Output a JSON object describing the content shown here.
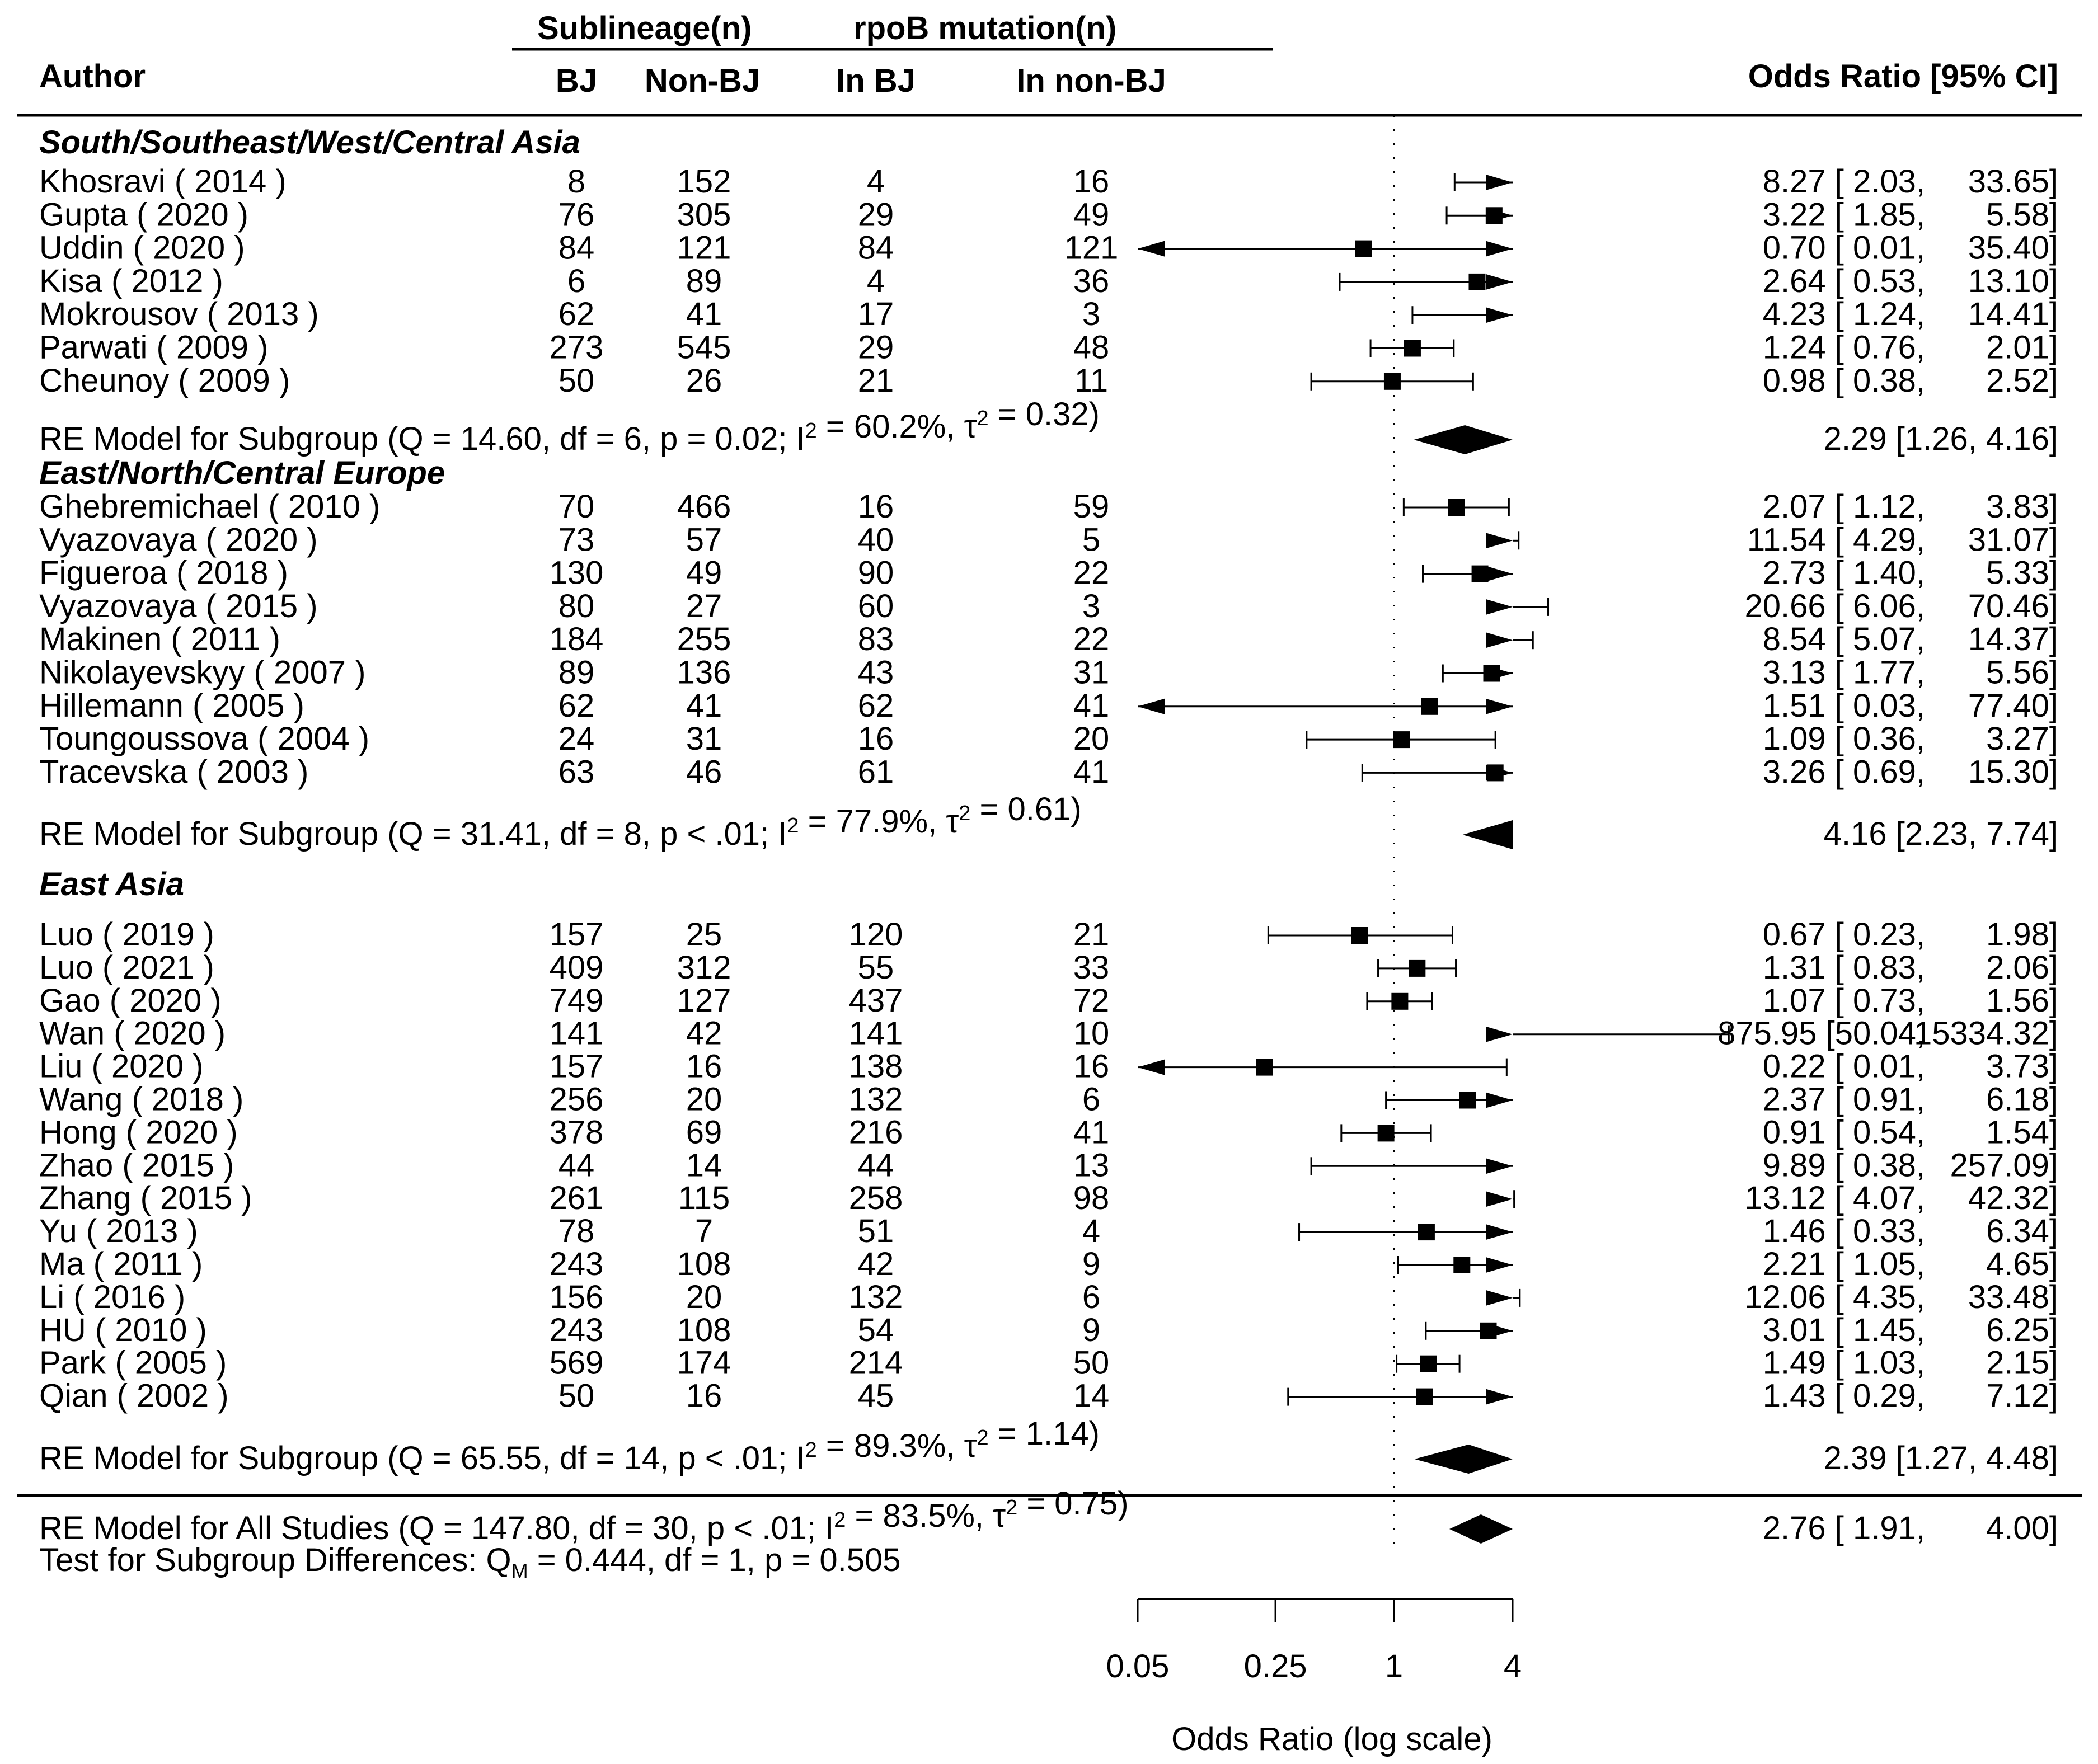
{
  "chart_data": {
    "type": "forest",
    "headers": {
      "author": "Author",
      "group1": "Sublineage(n)",
      "group2": "rpoB mutation(n)",
      "col_bj": "BJ",
      "col_nonbj": "Non-BJ",
      "col_in_bj": "In BJ",
      "col_in_nonbj": "In non-BJ",
      "estimate": "Odds Ratio [95% CI]"
    },
    "axis": {
      "xlabel": "Odds Ratio (log scale)",
      "scale": "log",
      "xlim": [
        0.05,
        4
      ],
      "ticks": [
        0.05,
        0.25,
        1,
        4
      ],
      "tick_labels": [
        "0.05",
        "0.25",
        "1",
        "4"
      ],
      "reference_line": 1
    },
    "groups": [
      {
        "name": "South/Southeast/West/Central Asia",
        "studies": [
          {
            "author": "Khosravi ( 2014 )",
            "bj": "8",
            "nonbj": "152",
            "in_bj": "4",
            "in_nonbj": "16",
            "est_label": "8.27 [ 2.03,",
            "hi_label": "33.65]",
            "or": 8.27,
            "lo": 2.03,
            "hi": 33.65
          },
          {
            "author": "Gupta ( 2020 )",
            "bj": "76",
            "nonbj": "305",
            "in_bj": "29",
            "in_nonbj": "49",
            "est_label": "3.22 [ 1.85,",
            "hi_label": "5.58]",
            "or": 3.22,
            "lo": 1.85,
            "hi": 5.58
          },
          {
            "author": "Uddin ( 2020 )",
            "bj": "84",
            "nonbj": "121",
            "in_bj": "84",
            "in_nonbj": "121",
            "est_label": "0.70 [ 0.01,",
            "hi_label": "35.40]",
            "or": 0.7,
            "lo": 0.01,
            "hi": 35.4
          },
          {
            "author": "Kisa ( 2012 )",
            "bj": "6",
            "nonbj": "89",
            "in_bj": "4",
            "in_nonbj": "36",
            "est_label": "2.64 [ 0.53,",
            "hi_label": "13.10]",
            "or": 2.64,
            "lo": 0.53,
            "hi": 13.1
          },
          {
            "author": "Mokrousov ( 2013 )",
            "bj": "62",
            "nonbj": "41",
            "in_bj": "17",
            "in_nonbj": "3",
            "est_label": "4.23 [ 1.24,",
            "hi_label": "14.41]",
            "or": 4.23,
            "lo": 1.24,
            "hi": 14.41
          },
          {
            "author": "Parwati ( 2009 )",
            "bj": "273",
            "nonbj": "545",
            "in_bj": "29",
            "in_nonbj": "48",
            "est_label": "1.24 [ 0.76,",
            "hi_label": "2.01]",
            "or": 1.24,
            "lo": 0.76,
            "hi": 2.01
          },
          {
            "author": "Cheunoy ( 2009 )",
            "bj": "50",
            "nonbj": "26",
            "in_bj": "21",
            "in_nonbj": "11",
            "est_label": "0.98 [ 0.38,",
            "hi_label": "2.52]",
            "or": 0.98,
            "lo": 0.38,
            "hi": 2.52
          }
        ],
        "model": {
          "label_pre": "RE Model for Subgroup (Q = 14.60, df = 6, p = 0.02; I",
          "label_mid": " = 60.2%, τ",
          "label_post": " = 0.32)",
          "sup": "2",
          "est_label": "2.29 [1.26, 4.16]",
          "or": 2.29,
          "lo": 1.26,
          "hi": 4.16
        }
      },
      {
        "name": "East/North/Central Europe",
        "studies": [
          {
            "author": "Ghebremichael ( 2010 )",
            "bj": "70",
            "nonbj": "466",
            "in_bj": "16",
            "in_nonbj": "59",
            "est_label": "2.07 [ 1.12,",
            "hi_label": "3.83]",
            "or": 2.07,
            "lo": 1.12,
            "hi": 3.83
          },
          {
            "author": "Vyazovaya ( 2020 )",
            "bj": "73",
            "nonbj": "57",
            "in_bj": "40",
            "in_nonbj": "5",
            "est_label": "11.54 [ 4.29,",
            "hi_label": "31.07]",
            "or": 11.54,
            "lo": 4.29,
            "hi": 31.07
          },
          {
            "author": "Figueroa ( 2018 )",
            "bj": "130",
            "nonbj": "49",
            "in_bj": "90",
            "in_nonbj": "22",
            "est_label": "2.73 [ 1.40,",
            "hi_label": "5.33]",
            "or": 2.73,
            "lo": 1.4,
            "hi": 5.33
          },
          {
            "author": "Vyazovaya ( 2015 )",
            "bj": "80",
            "nonbj": "27",
            "in_bj": "60",
            "in_nonbj": "3",
            "est_label": "20.66 [ 6.06,",
            "hi_label": "70.46]",
            "or": 20.66,
            "lo": 6.06,
            "hi": 70.46
          },
          {
            "author": "Makinen ( 2011 )",
            "bj": "184",
            "nonbj": "255",
            "in_bj": "83",
            "in_nonbj": "22",
            "est_label": "8.54 [ 5.07,",
            "hi_label": "14.37]",
            "or": 8.54,
            "lo": 5.07,
            "hi": 14.37
          },
          {
            "author": "Nikolayevskyy ( 2007 )",
            "bj": "89",
            "nonbj": "136",
            "in_bj": "43",
            "in_nonbj": "31",
            "est_label": "3.13 [ 1.77,",
            "hi_label": "5.56]",
            "or": 3.13,
            "lo": 1.77,
            "hi": 5.56
          },
          {
            "author": "Hillemann ( 2005 )",
            "bj": "62",
            "nonbj": "41",
            "in_bj": "62",
            "in_nonbj": "41",
            "est_label": "1.51 [ 0.03,",
            "hi_label": "77.40]",
            "or": 1.51,
            "lo": 0.03,
            "hi": 77.4
          },
          {
            "author": "Toungoussova ( 2004 )",
            "bj": "24",
            "nonbj": "31",
            "in_bj": "16",
            "in_nonbj": "20",
            "est_label": "1.09 [ 0.36,",
            "hi_label": "3.27]",
            "or": 1.09,
            "lo": 0.36,
            "hi": 3.27
          },
          {
            "author": "Tracevska ( 2003 )",
            "bj": "63",
            "nonbj": "46",
            "in_bj": "61",
            "in_nonbj": "41",
            "est_label": "3.26 [ 0.69,",
            "hi_label": "15.30]",
            "or": 3.26,
            "lo": 0.69,
            "hi": 15.3
          }
        ],
        "model": {
          "label_pre": "RE Model for Subgroup (Q = 31.41, df = 8, p < .01; I",
          "label_mid": " = 77.9%, τ",
          "label_post": " = 0.61)",
          "sup": "2",
          "est_label": "4.16 [2.23, 7.74]",
          "or": 4.16,
          "lo": 2.23,
          "hi": 7.74
        }
      },
      {
        "name": "East Asia",
        "studies": [
          {
            "author": "Luo ( 2019 )",
            "bj": "157",
            "nonbj": "25",
            "in_bj": "120",
            "in_nonbj": "21",
            "est_label": "0.67 [ 0.23,",
            "hi_label": "1.98]",
            "or": 0.67,
            "lo": 0.23,
            "hi": 1.98
          },
          {
            "author": "Luo ( 2021 )",
            "bj": "409",
            "nonbj": "312",
            "in_bj": "55",
            "in_nonbj": "33",
            "est_label": "1.31 [ 0.83,",
            "hi_label": "2.06]",
            "or": 1.31,
            "lo": 0.83,
            "hi": 2.06
          },
          {
            "author": "Gao ( 2020 )",
            "bj": "749",
            "nonbj": "127",
            "in_bj": "437",
            "in_nonbj": "72",
            "est_label": "1.07 [ 0.73,",
            "hi_label": "1.56]",
            "or": 1.07,
            "lo": 0.73,
            "hi": 1.56
          },
          {
            "author": "Wan ( 2020 )",
            "bj": "141",
            "nonbj": "42",
            "in_bj": "141",
            "in_nonbj": "10",
            "est_label": "875.95 [50.04,",
            "hi_label": "15334.32]",
            "or": 875.95,
            "lo": 50.04,
            "hi": 15334.32
          },
          {
            "author": "Liu ( 2020 )",
            "bj": "157",
            "nonbj": "16",
            "in_bj": "138",
            "in_nonbj": "16",
            "est_label": "0.22 [ 0.01,",
            "hi_label": "3.73]",
            "or": 0.22,
            "lo": 0.01,
            "hi": 3.73
          },
          {
            "author": "Wang ( 2018 )",
            "bj": "256",
            "nonbj": "20",
            "in_bj": "132",
            "in_nonbj": "6",
            "est_label": "2.37 [ 0.91,",
            "hi_label": "6.18]",
            "or": 2.37,
            "lo": 0.91,
            "hi": 6.18
          },
          {
            "author": "Hong ( 2020 )",
            "bj": "378",
            "nonbj": "69",
            "in_bj": "216",
            "in_nonbj": "41",
            "est_label": "0.91 [ 0.54,",
            "hi_label": "1.54]",
            "or": 0.91,
            "lo": 0.54,
            "hi": 1.54
          },
          {
            "author": "Zhao ( 2015 )",
            "bj": "44",
            "nonbj": "14",
            "in_bj": "44",
            "in_nonbj": "13",
            "est_label": "9.89 [ 0.38,",
            "hi_label": "257.09]",
            "or": 9.89,
            "lo": 0.38,
            "hi": 257.09
          },
          {
            "author": "Zhang ( 2015 )",
            "bj": "261",
            "nonbj": "115",
            "in_bj": "258",
            "in_nonbj": "98",
            "est_label": "13.12 [ 4.07,",
            "hi_label": "42.32]",
            "or": 13.12,
            "lo": 4.07,
            "hi": 42.32
          },
          {
            "author": "Yu ( 2013 )",
            "bj": "78",
            "nonbj": "7",
            "in_bj": "51",
            "in_nonbj": "4",
            "est_label": "1.46 [ 0.33,",
            "hi_label": "6.34]",
            "or": 1.46,
            "lo": 0.33,
            "hi": 6.34
          },
          {
            "author": "Ma ( 2011 )",
            "bj": "243",
            "nonbj": "108",
            "in_bj": "42",
            "in_nonbj": "9",
            "est_label": "2.21 [ 1.05,",
            "hi_label": "4.65]",
            "or": 2.21,
            "lo": 1.05,
            "hi": 4.65
          },
          {
            "author": "Li ( 2016 )",
            "bj": "156",
            "nonbj": "20",
            "in_bj": "132",
            "in_nonbj": "6",
            "est_label": "12.06 [ 4.35,",
            "hi_label": "33.48]",
            "or": 12.06,
            "lo": 4.35,
            "hi": 33.48
          },
          {
            "author": "HU ( 2010 )",
            "bj": "243",
            "nonbj": "108",
            "in_bj": "54",
            "in_nonbj": "9",
            "est_label": "3.01 [ 1.45,",
            "hi_label": "6.25]",
            "or": 3.01,
            "lo": 1.45,
            "hi": 6.25
          },
          {
            "author": "Park ( 2005 )",
            "bj": "569",
            "nonbj": "174",
            "in_bj": "214",
            "in_nonbj": "50",
            "est_label": "1.49 [ 1.03,",
            "hi_label": "2.15]",
            "or": 1.49,
            "lo": 1.03,
            "hi": 2.15
          },
          {
            "author": "Qian ( 2002 )",
            "bj": "50",
            "nonbj": "16",
            "in_bj": "45",
            "in_nonbj": "14",
            "est_label": "1.43 [ 0.29,",
            "hi_label": "7.12]",
            "or": 1.43,
            "lo": 0.29,
            "hi": 7.12
          }
        ],
        "model": {
          "label_pre": "RE Model for Subgroup (Q = 65.55, df = 14, p < .01; I",
          "label_mid": " = 89.3%, τ",
          "label_post": " = 1.14)",
          "sup": "2",
          "est_label": "2.39 [1.27, 4.48]",
          "or": 2.39,
          "lo": 1.27,
          "hi": 4.48
        }
      }
    ],
    "overall": {
      "label_pre": "RE Model for All Studies (Q = 147.80, df = 30, p < .01; I",
      "label_mid": " = 83.5%, τ",
      "label_post": " = 0.75)",
      "sup": "2",
      "est_label": "2.76 [ 1.91,",
      "hi_label": "4.00]",
      "or": 2.76,
      "lo": 1.91,
      "hi": 4.0
    },
    "subgroup_test": {
      "pre": "Test for Subgroup Differences: Q",
      "sub": "M",
      "post": " = 0.444, df = 1, p = 0.505"
    }
  }
}
